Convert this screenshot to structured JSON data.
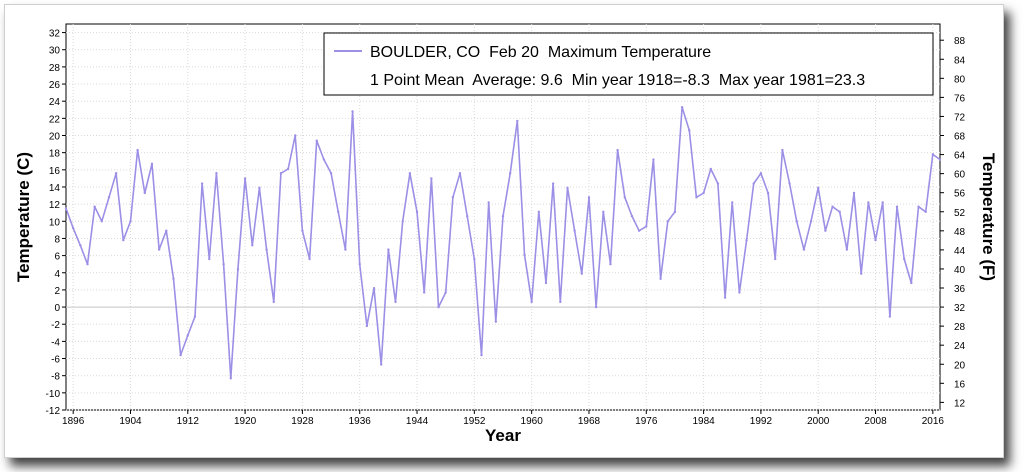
{
  "chart_data": {
    "type": "line",
    "title": "BOULDER, CO  Feb 20  Maximum Temperature",
    "subtitle": "1 Point Mean  Average: 9.6  Min year 1918=-8.3  Max year 1981=23.3",
    "xlabel": "Year",
    "ylabel": "Temperature (C)",
    "ylabel_right": "Temperature (F)",
    "xlim": [
      1895,
      2017
    ],
    "ylim": [
      -12,
      33
    ],
    "ylim_right_f": [
      10.4,
      91.4
    ],
    "x_ticks": [
      1896,
      1904,
      1912,
      1920,
      1928,
      1936,
      1944,
      1952,
      1960,
      1968,
      1976,
      1984,
      1992,
      2000,
      2008,
      2016
    ],
    "y_ticks": [
      -12,
      -10,
      -8,
      -6,
      -4,
      -2,
      0,
      2,
      4,
      6,
      8,
      10,
      12,
      14,
      16,
      18,
      20,
      22,
      24,
      26,
      28,
      30,
      32
    ],
    "y_ticks_right": [
      12,
      16,
      20,
      24,
      28,
      32,
      36,
      40,
      44,
      48,
      52,
      56,
      60,
      64,
      68,
      72,
      76,
      80,
      84,
      88
    ],
    "grid": true,
    "legend": "top-right",
    "line_color": "#9b8fe6",
    "series": [
      {
        "name": "BOULDER, CO  Feb 20  Maximum Temperature",
        "x": [
          1895,
          1896,
          1897,
          1898,
          1899,
          1900,
          1901,
          1902,
          1903,
          1904,
          1905,
          1906,
          1907,
          1908,
          1909,
          1910,
          1911,
          1912,
          1913,
          1914,
          1915,
          1916,
          1917,
          1918,
          1919,
          1920,
          1921,
          1922,
          1923,
          1924,
          1925,
          1926,
          1927,
          1928,
          1929,
          1930,
          1931,
          1932,
          1933,
          1934,
          1935,
          1936,
          1937,
          1938,
          1939,
          1940,
          1941,
          1942,
          1943,
          1944,
          1945,
          1946,
          1947,
          1948,
          1949,
          1950,
          1951,
          1952,
          1953,
          1954,
          1955,
          1956,
          1957,
          1958,
          1959,
          1960,
          1961,
          1962,
          1963,
          1964,
          1965,
          1966,
          1967,
          1968,
          1969,
          1970,
          1971,
          1972,
          1973,
          1974,
          1975,
          1976,
          1977,
          1978,
          1979,
          1980,
          1981,
          1982,
          1983,
          1984,
          1985,
          1986,
          1987,
          1988,
          1989,
          1990,
          1991,
          1992,
          1993,
          1994,
          1995,
          1996,
          1997,
          1998,
          1999,
          2000,
          2001,
          2002,
          2003,
          2004,
          2005,
          2006,
          2007,
          2008,
          2009,
          2010,
          2011,
          2012,
          2013,
          2014,
          2015,
          2016,
          2017
        ],
        "values": [
          11.5,
          9.2,
          7.2,
          5.0,
          11.7,
          10.0,
          12.8,
          15.6,
          7.8,
          10.0,
          18.3,
          13.3,
          16.7,
          6.7,
          8.9,
          3.3,
          -5.6,
          -3.3,
          -1.1,
          14.4,
          5.6,
          15.6,
          5.0,
          -8.3,
          4.4,
          15.0,
          7.2,
          13.9,
          6.7,
          0.6,
          15.6,
          16.1,
          20.0,
          8.9,
          5.6,
          19.4,
          17.2,
          15.6,
          11.1,
          6.7,
          22.8,
          5.0,
          -2.2,
          2.2,
          -6.7,
          6.7,
          0.6,
          10.0,
          15.6,
          11.1,
          1.7,
          15.0,
          0.0,
          1.7,
          12.8,
          15.6,
          10.6,
          5.6,
          -5.6,
          12.2,
          -1.7,
          10.6,
          15.6,
          21.7,
          6.1,
          0.6,
          11.1,
          2.8,
          14.4,
          0.6,
          13.9,
          8.9,
          3.9,
          12.8,
          0.0,
          11.1,
          5.0,
          18.3,
          12.8,
          10.6,
          8.9,
          9.4,
          17.2,
          3.3,
          10.0,
          11.1,
          23.3,
          20.6,
          12.8,
          13.3,
          16.1,
          14.4,
          1.1,
          12.2,
          1.7,
          7.8,
          14.4,
          15.6,
          13.3,
          5.6,
          18.3,
          14.4,
          10.0,
          6.7,
          10.0,
          13.9,
          8.9,
          11.7,
          11.1,
          6.7,
          13.3,
          3.9,
          12.2,
          7.8,
          12.2,
          -1.1,
          11.7,
          5.6,
          2.8,
          11.7,
          11.1,
          17.8,
          17.2
        ]
      }
    ]
  }
}
